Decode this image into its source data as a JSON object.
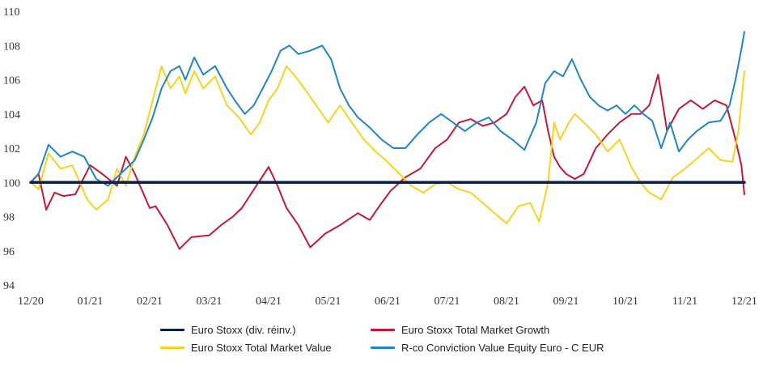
{
  "chart_data": {
    "type": "line",
    "title": "",
    "xlabel": "",
    "ylabel": "",
    "x_tick_labels": [
      "12/20",
      "01/21",
      "02/21",
      "03/21",
      "04/21",
      "05/21",
      "06/21",
      "07/21",
      "08/21",
      "09/21",
      "10/21",
      "11/21",
      "12/21"
    ],
    "y_ticks": [
      94,
      96,
      98,
      100,
      102,
      104,
      106,
      108,
      110
    ],
    "ylim": [
      94,
      110
    ],
    "grid": false,
    "legend_position": "bottom",
    "series": [
      {
        "name": "Euro Stoxx (div. réinv.)",
        "color": "#0d1f45",
        "x": [
          0,
          12
        ],
        "y": [
          100,
          100
        ]
      },
      {
        "name": "Euro Stoxx Total Market Growth",
        "color": "#c0193b",
        "x": [
          0,
          0.13,
          0.26,
          0.4,
          0.55,
          0.75,
          1.0,
          1.2,
          1.45,
          1.6,
          1.75,
          2.0,
          2.1,
          2.3,
          2.5,
          2.7,
          3.0,
          3.2,
          3.4,
          3.55,
          3.7,
          4.0,
          4.15,
          4.3,
          4.5,
          4.7,
          4.95,
          5.2,
          5.5,
          5.7,
          5.9,
          6.05,
          6.3,
          6.55,
          6.8,
          7.0,
          7.2,
          7.4,
          7.6,
          7.8,
          8.0,
          8.15,
          8.3,
          8.45,
          8.6,
          8.7,
          8.8,
          8.9,
          9.0,
          9.15,
          9.3,
          9.5,
          9.7,
          9.9,
          10.1,
          10.25,
          10.4,
          10.55,
          10.7,
          10.9,
          11.1,
          11.3,
          11.5,
          11.7,
          11.85,
          11.95,
          12.0
        ],
        "y": [
          100,
          100.5,
          98.4,
          99.4,
          99.2,
          99.3,
          101.0,
          100.5,
          99.8,
          101.5,
          100.5,
          98.5,
          98.6,
          97.5,
          96.1,
          96.8,
          96.9,
          97.5,
          98.0,
          98.5,
          99.3,
          100.9,
          99.8,
          98.5,
          97.5,
          96.2,
          97.0,
          97.5,
          98.2,
          97.8,
          98.8,
          99.5,
          100.3,
          100.8,
          102.0,
          102.5,
          103.5,
          103.7,
          103.3,
          103.5,
          104.0,
          105.0,
          105.6,
          104.5,
          104.8,
          103.0,
          101.5,
          100.9,
          100.5,
          100.2,
          100.5,
          102.0,
          102.8,
          103.5,
          104.0,
          104.0,
          104.5,
          106.3,
          103.0,
          104.3,
          104.8,
          104.3,
          104.8,
          104.5,
          102.5,
          101.0,
          99.3
        ]
      },
      {
        "name": "Euro Stoxx Total Market Value",
        "color": "#f5d320",
        "x": [
          0,
          0.13,
          0.3,
          0.5,
          0.7,
          0.95,
          1.1,
          1.3,
          1.45,
          1.6,
          1.75,
          1.9,
          2.05,
          2.2,
          2.35,
          2.5,
          2.6,
          2.75,
          2.9,
          3.1,
          3.3,
          3.5,
          3.7,
          3.85,
          4.0,
          4.15,
          4.3,
          4.45,
          4.6,
          4.8,
          5.0,
          5.2,
          5.4,
          5.6,
          5.8,
          6.0,
          6.2,
          6.4,
          6.6,
          6.8,
          7.0,
          7.2,
          7.4,
          7.6,
          7.8,
          8.0,
          8.2,
          8.4,
          8.55,
          8.7,
          8.8,
          8.9,
          9.05,
          9.15,
          9.3,
          9.5,
          9.7,
          9.9,
          10.1,
          10.25,
          10.4,
          10.6,
          10.8,
          11.0,
          11.2,
          11.4,
          11.6,
          11.8,
          11.9,
          12.0
        ],
        "y": [
          100,
          99.6,
          101.7,
          100.8,
          101.0,
          99.0,
          98.4,
          99.0,
          100.8,
          99.8,
          101.5,
          102.8,
          104.8,
          106.8,
          105.5,
          106.2,
          105.2,
          106.5,
          105.5,
          106.2,
          104.5,
          103.8,
          102.8,
          103.5,
          104.8,
          105.5,
          106.8,
          106.2,
          105.5,
          104.5,
          103.5,
          104.5,
          103.5,
          102.5,
          101.8,
          101.2,
          100.5,
          99.8,
          99.4,
          99.9,
          100.0,
          99.6,
          99.4,
          98.8,
          98.2,
          97.6,
          98.6,
          98.8,
          97.7,
          100.0,
          103.5,
          102.5,
          103.5,
          104.0,
          103.5,
          102.8,
          101.8,
          102.5,
          100.9,
          100.0,
          99.4,
          99.0,
          100.3,
          100.8,
          101.4,
          102.0,
          101.3,
          101.2,
          103.0,
          106.5
        ]
      },
      {
        "name": "R-co Conviction Value Equity Euro - C EUR",
        "color": "#1f86c4",
        "x": [
          0,
          0.13,
          0.3,
          0.5,
          0.7,
          0.9,
          1.1,
          1.3,
          1.45,
          1.6,
          1.75,
          1.9,
          2.05,
          2.2,
          2.35,
          2.5,
          2.6,
          2.75,
          2.9,
          3.1,
          3.3,
          3.45,
          3.6,
          3.75,
          3.9,
          4.05,
          4.2,
          4.35,
          4.5,
          4.7,
          4.9,
          5.05,
          5.2,
          5.35,
          5.5,
          5.7,
          5.9,
          6.1,
          6.3,
          6.5,
          6.7,
          6.9,
          7.1,
          7.3,
          7.5,
          7.7,
          7.9,
          8.1,
          8.3,
          8.5,
          8.65,
          8.8,
          8.95,
          9.1,
          9.25,
          9.4,
          9.55,
          9.7,
          9.85,
          10.0,
          10.15,
          10.3,
          10.45,
          10.6,
          10.75,
          10.9,
          11.05,
          11.2,
          11.4,
          11.6,
          11.75,
          11.85,
          11.95,
          12.0
        ],
        "y": [
          100,
          100.5,
          102.2,
          101.5,
          101.8,
          101.5,
          100.2,
          99.8,
          100.3,
          100.8,
          101.3,
          102.5,
          103.8,
          105.5,
          106.5,
          106.8,
          106.0,
          107.3,
          106.3,
          106.8,
          105.5,
          104.7,
          104.0,
          104.5,
          105.5,
          106.5,
          107.7,
          108.0,
          107.5,
          107.7,
          108.0,
          107.2,
          105.5,
          104.5,
          103.8,
          103.2,
          102.5,
          102.0,
          102.0,
          102.8,
          103.5,
          104.0,
          103.5,
          103.0,
          103.5,
          103.8,
          103.0,
          102.5,
          101.9,
          103.5,
          105.8,
          106.5,
          106.2,
          107.2,
          106.0,
          105.0,
          104.5,
          104.2,
          104.5,
          104.0,
          104.5,
          104.0,
          103.6,
          102.0,
          103.5,
          101.8,
          102.5,
          103.0,
          103.5,
          103.6,
          104.5,
          106.0,
          107.8,
          108.8
        ]
      }
    ]
  }
}
